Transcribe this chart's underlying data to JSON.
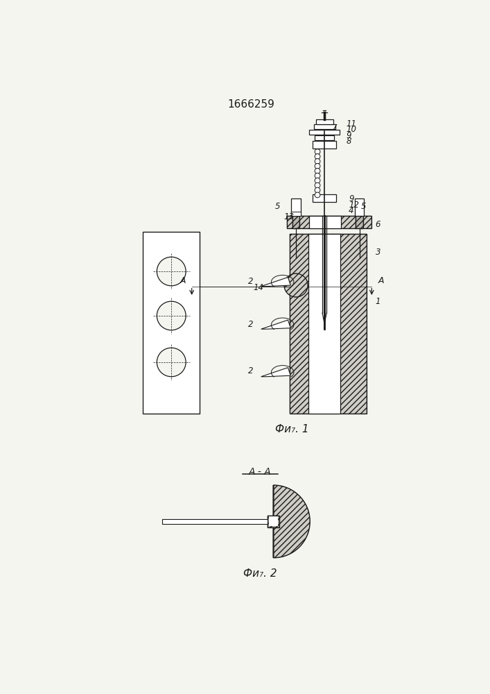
{
  "title": "1666259",
  "fig1_caption": "Фи₇. 1",
  "fig2_caption": "Фи₇. 2",
  "section_label": "A - A",
  "bg": "#f5f5f0",
  "lc": "#1a1a1a",
  "hfc": "#d0cdc6"
}
